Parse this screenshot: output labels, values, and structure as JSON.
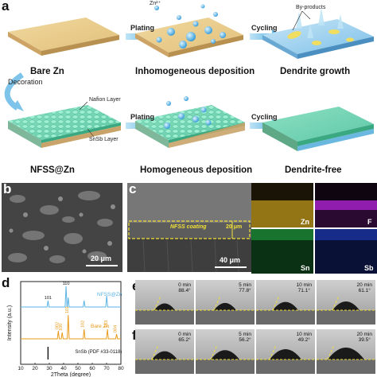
{
  "panel_a": {
    "label": "a",
    "zn_ion": "Zn²⁺",
    "by_products": "By-products",
    "plating1": "Plating",
    "cycling1": "Cycling",
    "plating2": "Plating",
    "cycling2": "Cycling",
    "decoration": "Decoration",
    "nafion": "Nafion Layer",
    "snsb": "SnSb Layer",
    "cap_bare": "Bare Zn",
    "cap_inhom": "Inhomogeneous deposition",
    "cap_dendrite": "Dendrite growth",
    "cap_nfss": "NFSS@Zn",
    "cap_hom": "Homogeneous deposition",
    "cap_free": "Dendrite-free"
  },
  "panel_b": {
    "label": "b",
    "scale": "20 μm"
  },
  "panel_c": {
    "label": "c",
    "coating": "NFSS coating",
    "thickness": "20 μm",
    "scale": "40 μm",
    "maps": [
      "Zn",
      "F",
      "Sn",
      "Sb"
    ],
    "colors": {
      "Zn": "#c8a020",
      "F": "#a020c0",
      "Sn": "#20a040",
      "Sb": "#2040c0"
    }
  },
  "panel_d": {
    "label": "d"
  },
  "panel_e": {
    "label": "e",
    "times": [
      "0 min",
      "5 min",
      "10 min",
      "20 min"
    ],
    "angles": [
      "88.4°",
      "77.8°",
      "71.1°",
      "61.1°"
    ]
  },
  "panel_f": {
    "label": "f",
    "times": [
      "0 min",
      "5 min",
      "10 min",
      "20 min"
    ],
    "angles": [
      "65.2°",
      "56.2°",
      "49.2°",
      "39.5°"
    ]
  },
  "chart_data": {
    "type": "line",
    "xlabel": "2Theta (degree)",
    "ylabel": "Intensity (a.u.)",
    "xlim": [
      10,
      80
    ],
    "xticks": [
      10,
      20,
      30,
      40,
      50,
      60,
      70,
      80
    ],
    "series": [
      {
        "name": "NFSS@Zn",
        "color": "#5ab4e6",
        "peaks": [
          {
            "x": 29.1,
            "label": "101"
          },
          {
            "x": 41.7,
            "label": "110"
          },
          {
            "x": 43.2,
            "label": ""
          },
          {
            "x": 54.3,
            "label": ""
          },
          {
            "x": 70.1,
            "label": ""
          }
        ]
      },
      {
        "name": "Bare Zn",
        "color": "#e89a1a",
        "peaks": [
          {
            "x": 36.3,
            "label": "002"
          },
          {
            "x": 39.0,
            "label": "100"
          },
          {
            "x": 43.2,
            "label": "101"
          },
          {
            "x": 54.3,
            "label": "102"
          },
          {
            "x": 70.6,
            "label": "103"
          },
          {
            "x": 77.0,
            "label": "004"
          }
        ]
      },
      {
        "name": "SnSb (PDF #33-0118)",
        "color": "#111111",
        "peaks": [
          {
            "x": 29.1,
            "label": ""
          }
        ]
      }
    ]
  }
}
